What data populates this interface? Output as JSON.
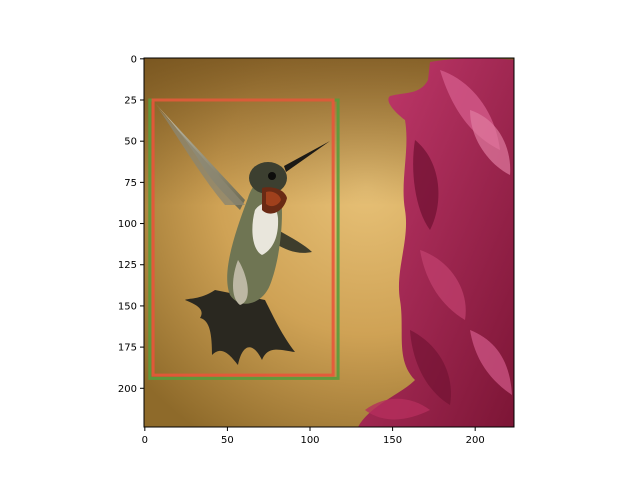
{
  "chart_data": {
    "type": "image",
    "title": "",
    "xlabel": "",
    "ylabel": "",
    "xlim": [
      -0.5,
      223.5
    ],
    "ylim": [
      223.5,
      -0.5
    ],
    "y_inverted": true,
    "grid": false,
    "x_ticks": [
      0,
      50,
      100,
      150,
      200
    ],
    "y_ticks": [
      0,
      25,
      50,
      75,
      100,
      125,
      150,
      175,
      200
    ],
    "image_content": "hummingbird in flight beside a magenta flower, blurred golden background",
    "boxes": [
      {
        "color": "#5a9a3c",
        "x0": 3,
        "y0": 25,
        "x1": 117,
        "y1": 194
      },
      {
        "color": "#e8553a",
        "x0": 5,
        "y0": 25,
        "x1": 114,
        "y1": 192
      }
    ]
  },
  "colors": {
    "frame": "#000000",
    "bg_dark": "#7a5a22",
    "bg_light": "#e2b86a",
    "flower": "#9a1f48",
    "flower_light": "#c8447a"
  }
}
